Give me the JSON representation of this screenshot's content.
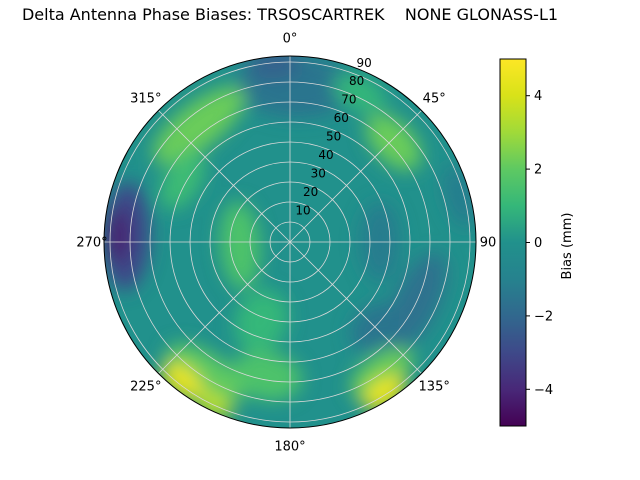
{
  "chart_data": {
    "type": "heatmap",
    "subtype": "polar_filled_contour",
    "title": "Delta Antenna Phase Biases: TRSOSCARTREK    NONE GLONASS-L1",
    "base_bias": 0,
    "rlabel_angle_deg": 22.5,
    "r_max": 93,
    "angular_ticks": [
      {
        "deg": 0,
        "label": "0°"
      },
      {
        "deg": 45,
        "label": "45°"
      },
      {
        "deg": 90,
        "label": "90"
      },
      {
        "deg": 135,
        "label": "135°"
      },
      {
        "deg": 180,
        "label": "180°"
      },
      {
        "deg": 225,
        "label": "225°"
      },
      {
        "deg": 270,
        "label": "270°"
      },
      {
        "deg": 315,
        "label": "315°"
      }
    ],
    "radial_ticks": [
      {
        "value": 10,
        "label": "10"
      },
      {
        "value": 20,
        "label": "20"
      },
      {
        "value": 30,
        "label": "30"
      },
      {
        "value": 40,
        "label": "40"
      },
      {
        "value": 50,
        "label": "50"
      },
      {
        "value": 60,
        "label": "60"
      },
      {
        "value": 70,
        "label": "70"
      },
      {
        "value": 80,
        "label": "80"
      },
      {
        "value": 90,
        "label": "90"
      }
    ],
    "colorbar": {
      "label": "Bias (mm)",
      "ticks": [
        "4",
        "2",
        "0",
        "−2",
        "−4"
      ],
      "tick_values": [
        4,
        2,
        0,
        -2,
        -4
      ],
      "vmin": -5,
      "vmax": 5,
      "colormap": "viridis"
    },
    "viridis_stops": [
      {
        "v": -5,
        "c": "#440154"
      },
      {
        "v": -4,
        "c": "#482878"
      },
      {
        "v": -3,
        "c": "#3e4989"
      },
      {
        "v": -2,
        "c": "#31688e"
      },
      {
        "v": -1,
        "c": "#26828e"
      },
      {
        "v": 0,
        "c": "#21918c"
      },
      {
        "v": 1,
        "c": "#35b779"
      },
      {
        "v": 2,
        "c": "#5ec962"
      },
      {
        "v": 3,
        "c": "#a0da39"
      },
      {
        "v": 4,
        "c": "#d8e219"
      },
      {
        "v": 5,
        "c": "#fde725"
      }
    ],
    "regions": [
      {
        "theta": 2,
        "r": 78,
        "ht": 30,
        "hr": 16,
        "bias": -1.5
      },
      {
        "theta": 355,
        "r": 90,
        "ht": 14,
        "hr": 8,
        "bias": -2.2
      },
      {
        "theta": 322,
        "r": 74,
        "ht": 28,
        "hr": 11,
        "bias": 2.2
      },
      {
        "theta": 300,
        "r": 62,
        "ht": 16,
        "hr": 9,
        "bias": 1.2
      },
      {
        "theta": 115,
        "r": 70,
        "ht": 26,
        "hr": 11,
        "bias": -1.6
      },
      {
        "theta": 90,
        "r": 45,
        "ht": 20,
        "hr": 10,
        "bias": -1.2
      },
      {
        "theta": 75,
        "r": 88,
        "ht": 16,
        "hr": 7,
        "bias": -1.2
      },
      {
        "theta": 135,
        "r": 60,
        "ht": 14,
        "hr": 10,
        "bias": -1.5
      },
      {
        "theta": 266,
        "r": 25,
        "ht": 22,
        "hr": 10,
        "bias": 1.6
      },
      {
        "theta": 200,
        "r": 42,
        "ht": 13,
        "hr": 16,
        "bias": 1.0
      },
      {
        "theta": 190,
        "r": 68,
        "ht": 18,
        "hr": 12,
        "bias": 1.6
      },
      {
        "theta": 213,
        "r": 78,
        "ht": 22,
        "hr": 10,
        "bias": 2.0
      },
      {
        "theta": 145,
        "r": 80,
        "ht": 18,
        "hr": 9,
        "bias": 2.2
      },
      {
        "theta": 46,
        "r": 72,
        "ht": 17,
        "hr": 10,
        "bias": 2.2
      },
      {
        "theta": 25,
        "r": 82,
        "ht": 14,
        "hr": 8,
        "bias": 1.0
      },
      {
        "theta": 272,
        "r": 82,
        "ht": 27,
        "hr": 12,
        "bias": -3.0
      },
      {
        "theta": 272,
        "r": 86,
        "ht": 14,
        "hr": 6,
        "bias": -4.2
      },
      {
        "theta": 218,
        "r": 88,
        "ht": 12,
        "hr": 7,
        "bias": 4.5
      },
      {
        "theta": 205,
        "r": 90,
        "ht": 10,
        "hr": 6,
        "bias": 3.5
      },
      {
        "theta": 148,
        "r": 89,
        "ht": 12,
        "hr": 7,
        "bias": 4.5
      }
    ]
  }
}
